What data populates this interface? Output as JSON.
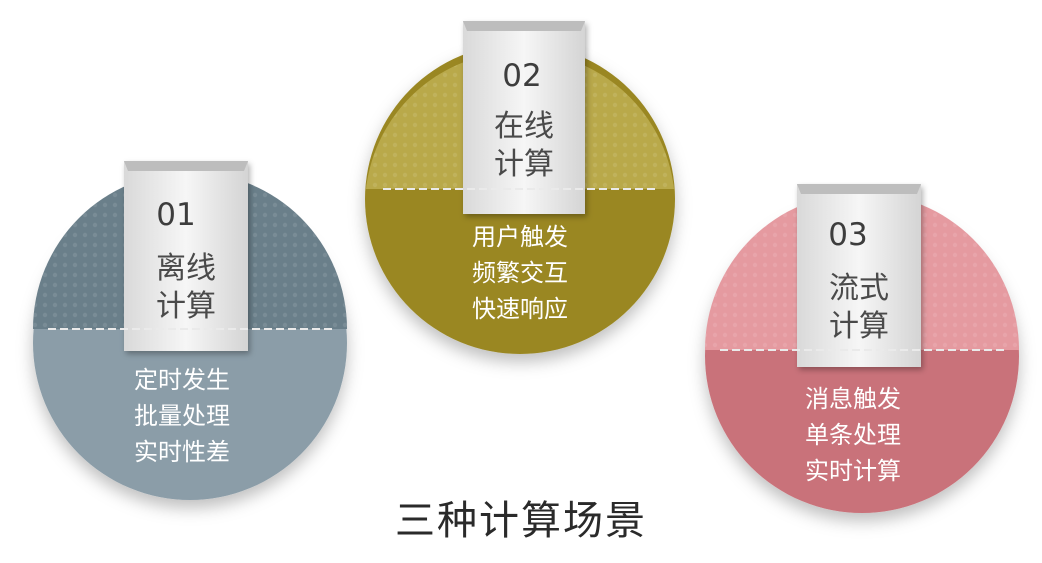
{
  "title": "三种计算场景",
  "cards": [
    {
      "number": "01",
      "title_line1": "离线",
      "title_line2": "计算",
      "desc": [
        "定时发生",
        "批量处理",
        "实时性差"
      ],
      "color_top": "#6a7f8a",
      "color_bottom": "#8b9da8"
    },
    {
      "number": "02",
      "title_line1": "在线",
      "title_line2": "计算",
      "desc": [
        "用户触发",
        "频繁交互",
        "快速响应"
      ],
      "color_top": "#b9a94a",
      "color_bottom": "#9a8722"
    },
    {
      "number": "03",
      "title_line1": "流式",
      "title_line2": "计算",
      "desc": [
        "消息触发",
        "单条处理",
        "实时计算"
      ],
      "color_top": "#e59aa0",
      "color_bottom": "#c9727a"
    }
  ]
}
